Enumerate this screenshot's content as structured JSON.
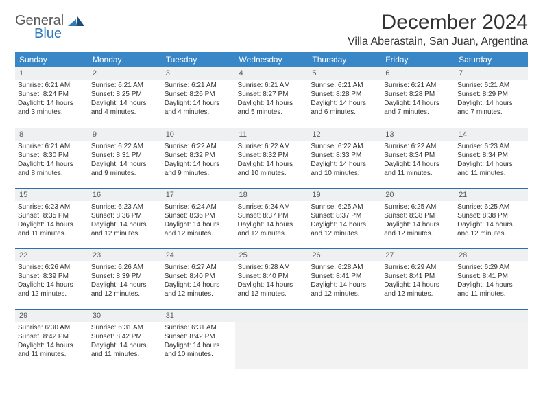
{
  "logo": {
    "word1": "General",
    "word2": "Blue"
  },
  "title": "December 2024",
  "location": "Villa Aberastain, San Juan, Argentina",
  "colors": {
    "header_bg": "#3a87c8",
    "header_text": "#ffffff",
    "daynum_bg": "#eef0f1",
    "rule": "#2f6ea8",
    "text": "#444444",
    "logo_gray": "#5a5a5a",
    "logo_blue": "#2f79b9"
  },
  "columns": [
    "Sunday",
    "Monday",
    "Tuesday",
    "Wednesday",
    "Thursday",
    "Friday",
    "Saturday"
  ],
  "weeks": [
    [
      {
        "n": "1",
        "sr": "6:21 AM",
        "ss": "8:24 PM",
        "dlh": "14",
        "dlm": "3"
      },
      {
        "n": "2",
        "sr": "6:21 AM",
        "ss": "8:25 PM",
        "dlh": "14",
        "dlm": "4"
      },
      {
        "n": "3",
        "sr": "6:21 AM",
        "ss": "8:26 PM",
        "dlh": "14",
        "dlm": "4"
      },
      {
        "n": "4",
        "sr": "6:21 AM",
        "ss": "8:27 PM",
        "dlh": "14",
        "dlm": "5"
      },
      {
        "n": "5",
        "sr": "6:21 AM",
        "ss": "8:28 PM",
        "dlh": "14",
        "dlm": "6"
      },
      {
        "n": "6",
        "sr": "6:21 AM",
        "ss": "8:28 PM",
        "dlh": "14",
        "dlm": "7"
      },
      {
        "n": "7",
        "sr": "6:21 AM",
        "ss": "8:29 PM",
        "dlh": "14",
        "dlm": "7"
      }
    ],
    [
      {
        "n": "8",
        "sr": "6:21 AM",
        "ss": "8:30 PM",
        "dlh": "14",
        "dlm": "8"
      },
      {
        "n": "9",
        "sr": "6:22 AM",
        "ss": "8:31 PM",
        "dlh": "14",
        "dlm": "9"
      },
      {
        "n": "10",
        "sr": "6:22 AM",
        "ss": "8:32 PM",
        "dlh": "14",
        "dlm": "9"
      },
      {
        "n": "11",
        "sr": "6:22 AM",
        "ss": "8:32 PM",
        "dlh": "14",
        "dlm": "10"
      },
      {
        "n": "12",
        "sr": "6:22 AM",
        "ss": "8:33 PM",
        "dlh": "14",
        "dlm": "10"
      },
      {
        "n": "13",
        "sr": "6:22 AM",
        "ss": "8:34 PM",
        "dlh": "14",
        "dlm": "11"
      },
      {
        "n": "14",
        "sr": "6:23 AM",
        "ss": "8:34 PM",
        "dlh": "14",
        "dlm": "11"
      }
    ],
    [
      {
        "n": "15",
        "sr": "6:23 AM",
        "ss": "8:35 PM",
        "dlh": "14",
        "dlm": "11"
      },
      {
        "n": "16",
        "sr": "6:23 AM",
        "ss": "8:36 PM",
        "dlh": "14",
        "dlm": "12"
      },
      {
        "n": "17",
        "sr": "6:24 AM",
        "ss": "8:36 PM",
        "dlh": "14",
        "dlm": "12"
      },
      {
        "n": "18",
        "sr": "6:24 AM",
        "ss": "8:37 PM",
        "dlh": "14",
        "dlm": "12"
      },
      {
        "n": "19",
        "sr": "6:25 AM",
        "ss": "8:37 PM",
        "dlh": "14",
        "dlm": "12"
      },
      {
        "n": "20",
        "sr": "6:25 AM",
        "ss": "8:38 PM",
        "dlh": "14",
        "dlm": "12"
      },
      {
        "n": "21",
        "sr": "6:25 AM",
        "ss": "8:38 PM",
        "dlh": "14",
        "dlm": "12"
      }
    ],
    [
      {
        "n": "22",
        "sr": "6:26 AM",
        "ss": "8:39 PM",
        "dlh": "14",
        "dlm": "12"
      },
      {
        "n": "23",
        "sr": "6:26 AM",
        "ss": "8:39 PM",
        "dlh": "14",
        "dlm": "12"
      },
      {
        "n": "24",
        "sr": "6:27 AM",
        "ss": "8:40 PM",
        "dlh": "14",
        "dlm": "12"
      },
      {
        "n": "25",
        "sr": "6:28 AM",
        "ss": "8:40 PM",
        "dlh": "14",
        "dlm": "12"
      },
      {
        "n": "26",
        "sr": "6:28 AM",
        "ss": "8:41 PM",
        "dlh": "14",
        "dlm": "12"
      },
      {
        "n": "27",
        "sr": "6:29 AM",
        "ss": "8:41 PM",
        "dlh": "14",
        "dlm": "12"
      },
      {
        "n": "28",
        "sr": "6:29 AM",
        "ss": "8:41 PM",
        "dlh": "14",
        "dlm": "11"
      }
    ],
    [
      {
        "n": "29",
        "sr": "6:30 AM",
        "ss": "8:42 PM",
        "dlh": "14",
        "dlm": "11"
      },
      {
        "n": "30",
        "sr": "6:31 AM",
        "ss": "8:42 PM",
        "dlh": "14",
        "dlm": "11"
      },
      {
        "n": "31",
        "sr": "6:31 AM",
        "ss": "8:42 PM",
        "dlh": "14",
        "dlm": "10"
      },
      null,
      null,
      null,
      null
    ]
  ],
  "labels": {
    "sunrise": "Sunrise:",
    "sunset": "Sunset:",
    "daylight_prefix": "Daylight:",
    "hours_word": "hours",
    "and_word": "and",
    "minutes_word": "minutes."
  }
}
